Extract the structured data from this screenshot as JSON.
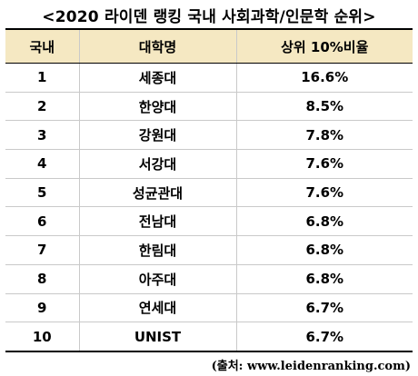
{
  "title": "<2020 라이덴 랭킹 국내 사회과학/인문학 순위>",
  "table": {
    "headers": [
      "국내",
      "대학명",
      "상위 10%비율"
    ],
    "rows": [
      [
        "1",
        "세종대",
        "16.6%"
      ],
      [
        "2",
        "한양대",
        "8.5%"
      ],
      [
        "3",
        "강원대",
        "7.8%"
      ],
      [
        "4",
        "서강대",
        "7.6%"
      ],
      [
        "5",
        "성균관대",
        "7.6%"
      ],
      [
        "6",
        "전남대",
        "6.8%"
      ],
      [
        "7",
        "한림대",
        "6.8%"
      ],
      [
        "8",
        "아주대",
        "6.8%"
      ],
      [
        "9",
        "연세대",
        "6.7%"
      ],
      [
        "10",
        "UNIST",
        "6.7%"
      ]
    ]
  },
  "source": "(출처: www.leidenranking.com)"
}
